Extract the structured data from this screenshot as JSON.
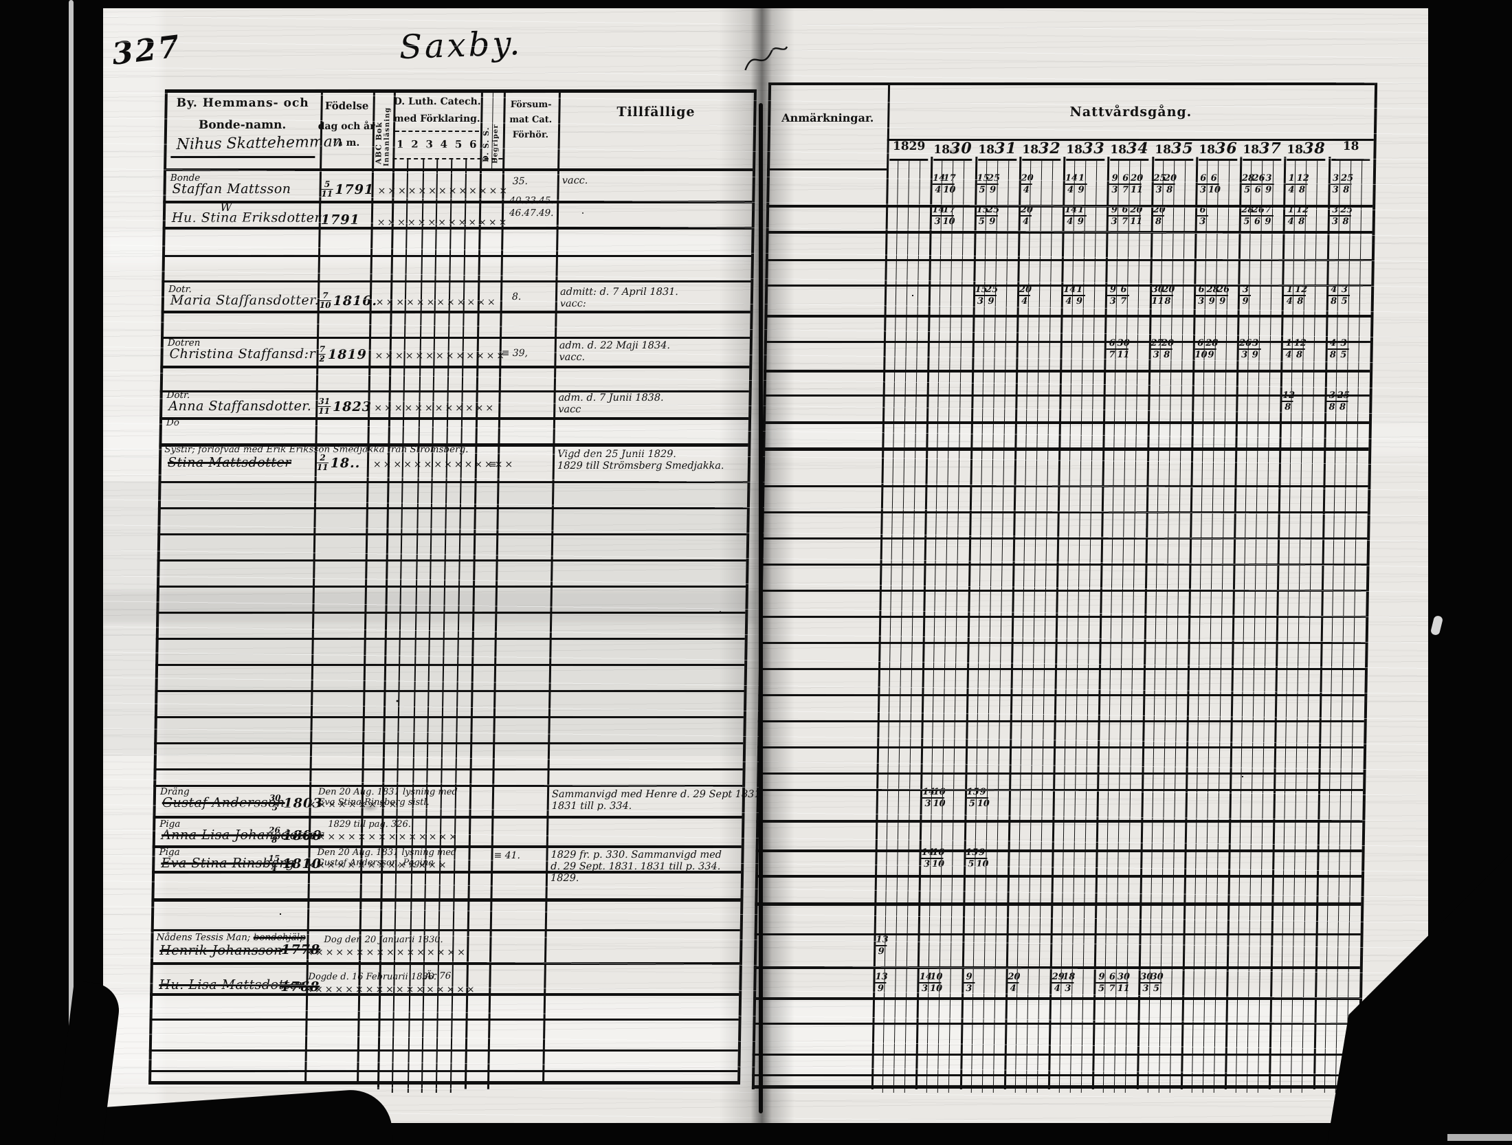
{
  "page": {
    "number": "327",
    "title": "Saxby."
  },
  "cols": {
    "name1": "By. Hemmans- och",
    "name2": "Bonde-namn.",
    "name_hand": "Nihus Skattehemman",
    "birth1": "Födelse",
    "birth2": "dag och år",
    "birth3": "¼ m.",
    "abc": [
      "ABC Bok",
      "Innanläsning"
    ],
    "cat1": "D. Luth. Catech.",
    "cat2": "med Förklaring.",
    "cat_numbers": [
      "1",
      "2",
      "3",
      "4",
      "5",
      "6"
    ],
    "dss": [
      "D. S. S.",
      "Begriper"
    ],
    "missed": [
      "Försum-",
      "mat Cat.",
      "Förhör."
    ],
    "till": "Tillfällige",
    "anm": "Anmärkningar.",
    "natt": "Nattvårdsgång."
  },
  "years": [
    {
      "printed": "1829",
      "hand": ""
    },
    {
      "printed": "18",
      "hand": "30"
    },
    {
      "printed": "18",
      "hand": "31"
    },
    {
      "printed": "18",
      "hand": "32"
    },
    {
      "printed": "18",
      "hand": "33"
    },
    {
      "printed": "18",
      "hand": "34"
    },
    {
      "printed": "18",
      "hand": "35"
    },
    {
      "printed": "18",
      "hand": "36"
    },
    {
      "printed": "18",
      "hand": "37"
    },
    {
      "printed": "18",
      "hand": "38"
    },
    {
      "printed": "18",
      "hand": ""
    }
  ],
  "rows": [
    {
      "id": "staffan",
      "prefix": "Bonde",
      "name": "Staffan Mattsson",
      "birth": "5/11 1791",
      "xcount": 13,
      "missed": "35.",
      "missed2": [
        "40.33.45.",
        "46.47.49."
      ],
      "till": [
        "vacc."
      ],
      "comm": {
        "1": [
          "14/4",
          "17/10"
        ],
        "2": [
          "15/5",
          "25/9"
        ],
        "3": [
          "20/4"
        ],
        "4": [
          "14/4",
          "1/9"
        ],
        "5": [
          "9/3",
          "6/7",
          "20/11"
        ],
        "6": [
          "25/3",
          "20/8"
        ],
        "7": [
          "6/3",
          "6/10"
        ],
        "8": [
          "28/5",
          "26/6",
          "3/9"
        ],
        "9": [
          "1/4",
          "12/8"
        ],
        "10": [
          "3/3",
          "25/8"
        ]
      }
    },
    {
      "id": "stina",
      "name": "Hu. Stina Eriksdotter",
      "mark": "W",
      "birth": "1791",
      "xcount": 13,
      "comm": {
        "1": [
          "14/3",
          "17/10"
        ],
        "2": [
          "15/5",
          "25/9"
        ],
        "3": [
          "20/4"
        ],
        "4": [
          "14/4",
          "1/9"
        ],
        "5": [
          "9/3",
          "6/7",
          "20/11"
        ],
        "6": [
          "20/8"
        ],
        "7": [
          "6/3"
        ],
        "8": [
          "28/5",
          "26/6",
          "7/9"
        ],
        "9": [
          "1/4",
          "12/8"
        ],
        "10": [
          "3/3",
          "25/8"
        ]
      }
    },
    {
      "id": "maria",
      "prefix": "Dotr.",
      "name": "Maria Staffansdotter.",
      "birth": "7/10 1816.",
      "xcount": 12,
      "missed": "8.",
      "till": [
        "admitt: d. 7 April 1831.",
        "vacc:"
      ],
      "comm": {
        "2": [
          "15/3",
          "25/9"
        ],
        "3": [
          "20/4"
        ],
        "4": [
          "14/4",
          "1/9"
        ],
        "5": [
          "9/3",
          "6/7"
        ],
        "6": [
          "30/11",
          "20/8"
        ],
        "7": [
          "6/3",
          "28/9",
          "26/9"
        ],
        "8": [
          "3/9"
        ],
        "9": [
          "1/4",
          "12/8"
        ],
        "10": [
          "4/8",
          "3/5"
        ]
      }
    },
    {
      "id": "christina",
      "prefix": "Dotren",
      "name": "Christina Staffansd:r",
      "birth": "7/2 1819",
      "xcount": 13,
      "missed": "≡ 39,",
      "till": [
        "adm. d. 22 Maji 1834.",
        "vacc."
      ],
      "comm": {
        "5": [
          "6/7",
          "30/11"
        ],
        "6": [
          "27/3",
          "20/8"
        ],
        "7": [
          "6/10",
          "28/9"
        ],
        "8": [
          "26/3",
          "3/9"
        ],
        "9": [
          "1/4",
          "12/8"
        ],
        "10": [
          "4/8",
          "3/5"
        ]
      }
    },
    {
      "id": "anna",
      "prefix": "Dotr.",
      "name": "Anna Staffansdotter.",
      "birth": "31/11 1823",
      "xcount": 12,
      "till": [
        "adm. d. 7 Junii 1838.",
        "vacc"
      ],
      "comm": {
        "9": [
          "12/8"
        ],
        "10": [
          "3/8",
          "25/8"
        ]
      }
    },
    {
      "id": "do",
      "prefix": "Do",
      "name": "",
      "birth": "",
      "xcount": 0
    },
    {
      "id": "stinam",
      "header": "Systir; förlofvad med Erik Eriksson Smedjakka från Strömsberg.",
      "name": "Stina Mattsdotter",
      "struck": true,
      "birth": "2/11 18..",
      "xcount": 14,
      "dss_mark": "≡",
      "till": [
        "Vigd den 25 Junii 1829.",
        "1829 till Strömsberg Smedjakka."
      ]
    },
    {
      "id": "gustaf",
      "prefix": "Dräng",
      "name": "Gustaf Andersson",
      "struck": true,
      "birth": "30/5 1803",
      "xcount": 9,
      "note": [
        "Den 20 Aug. 1831 lysning med",
        "Eva Stina Rinsberg sistl."
      ],
      "till": [
        "Sammanvigd med Henre d. 29 Sept 1831.",
        "1831 till p. 334."
      ],
      "comm": {
        "1": [
          "14/3",
          "10/10"
        ],
        "2": [
          "15/5",
          "9/10"
        ]
      }
    },
    {
      "id": "annalisa",
      "prefix": "Piga",
      "name": "Anna Lisa Johansdotter",
      "struck": true,
      "birth": "26/8 1800",
      "xcount": 15,
      "note": [
        "1829 till pag. 326."
      ]
    },
    {
      "id": "eva",
      "prefix": "Piga",
      "name": "Eva Stina Rinsberg",
      "struck": true,
      "birth": "15/4 1810",
      "xcount": 14,
      "missed": "≡ 41.",
      "note": [
        "Den 20 Aug. 1831 lysning med",
        "Gustaf Andersson, Pagina"
      ],
      "till": [
        "1829 fr. p. 330. Sammanvigd med",
        "d. 29 Sept. 1831. 1831 till p. 334.",
        "1829."
      ],
      "comm": {
        "1": [
          "14/3",
          "10/10"
        ],
        "2": [
          "15/5",
          "9/10"
        ]
      }
    },
    {
      "id": "henrik",
      "header": "Nådens Tessis Man;",
      "header_struck": "bondehjälp",
      "name": "Henrik Johansson",
      "struck": true,
      "birth": "1778",
      "birth_struck": true,
      "xcount": 16,
      "note": [
        "Dog den 20 Januarii 1830."
      ],
      "comm": {
        "0": [
          "13/9"
        ]
      }
    },
    {
      "id": "lisa",
      "name": "Hu. Lisa Mattsdotter",
      "struck": true,
      "birth": "1768",
      "birth_struck": true,
      "xcount": 17,
      "note": [
        "Dogde d. 16 Februarii 1836."
      ],
      "note2": "Är 76.",
      "comm": {
        "0": [
          "13/9"
        ],
        "1": [
          "14/3",
          "10/10"
        ],
        "2": [
          "9/3"
        ],
        "3": [
          "20/4"
        ],
        "4": [
          "29/4",
          "18/3"
        ],
        "5": [
          "9/5",
          "6/7",
          "30/11"
        ],
        "6": [
          "30/3",
          "30/5"
        ]
      }
    }
  ],
  "ink_color": "#101010",
  "paper_color": "#eae8e4"
}
